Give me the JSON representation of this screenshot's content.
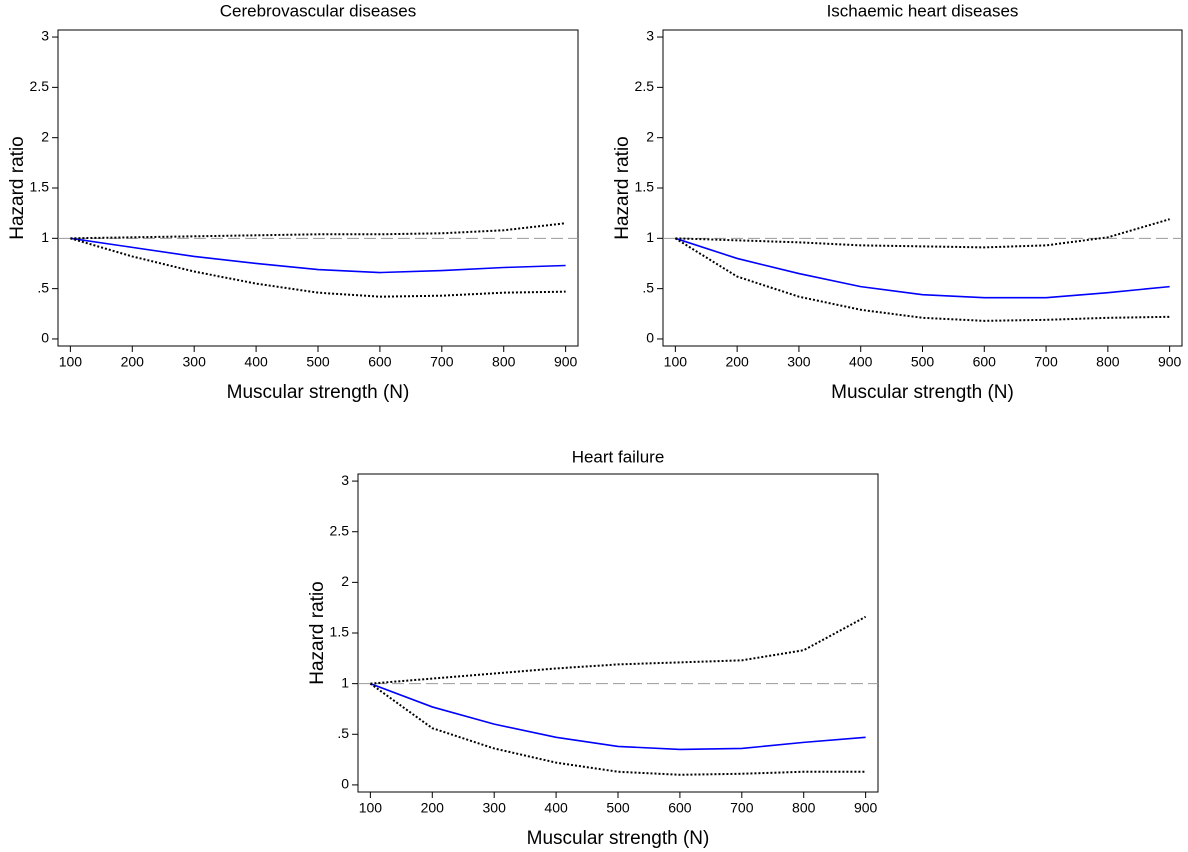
{
  "chart_data": [
    {
      "type": "line",
      "title": "Cerebrovascular diseases",
      "x_label": "Muscular strength (N)",
      "y_label": "Hazard ratio",
      "x": [
        100,
        200,
        300,
        400,
        500,
        600,
        700,
        800,
        900
      ],
      "series": [
        {
          "color": "#0000ff",
          "style": "solid",
          "values": [
            1,
            0.91,
            0.82,
            0.75,
            0.69,
            0.66,
            0.68,
            0.71,
            0.73
          ]
        },
        {
          "color": "#000000",
          "style": "dotted",
          "values": [
            1,
            1.01,
            1.02,
            1.03,
            1.04,
            1.04,
            1.05,
            1.08,
            1.15
          ]
        },
        {
          "color": "#000000",
          "style": "dotted",
          "values": [
            1,
            0.82,
            0.67,
            0.55,
            0.46,
            0.42,
            0.43,
            0.46,
            0.47
          ]
        }
      ],
      "reference_line": 1,
      "reference_color": "#999999",
      "xlim": [
        80,
        920
      ],
      "ylim": [
        -0.07,
        3.07
      ],
      "xticks": [
        100,
        200,
        300,
        400,
        500,
        600,
        700,
        800,
        900
      ],
      "yticks": [
        0,
        {
          "value": 0.5,
          "label": ".5"
        },
        1,
        1.5,
        2,
        2.5,
        3
      ]
    },
    {
      "type": "line",
      "title": "Ischaemic heart diseases",
      "x_label": "Muscular strength (N)",
      "y_label": "Hazard ratio",
      "x": [
        100,
        200,
        300,
        400,
        500,
        600,
        700,
        800,
        900
      ],
      "series": [
        {
          "color": "#0000ff",
          "style": "solid",
          "values": [
            1,
            0.8,
            0.65,
            0.52,
            0.44,
            0.41,
            0.41,
            0.46,
            0.52
          ]
        },
        {
          "color": "#000000",
          "style": "dotted",
          "values": [
            1,
            0.98,
            0.96,
            0.93,
            0.92,
            0.91,
            0.93,
            1.01,
            1.19
          ]
        },
        {
          "color": "#000000",
          "style": "dotted",
          "values": [
            1,
            0.62,
            0.42,
            0.29,
            0.21,
            0.18,
            0.19,
            0.21,
            0.22
          ]
        }
      ],
      "reference_line": 1,
      "reference_color": "#999999",
      "xlim": [
        80,
        920
      ],
      "ylim": [
        -0.07,
        3.07
      ],
      "xticks": [
        100,
        200,
        300,
        400,
        500,
        600,
        700,
        800,
        900
      ],
      "yticks": [
        0,
        {
          "value": 0.5,
          "label": ".5"
        },
        1,
        1.5,
        2,
        2.5,
        3
      ]
    },
    {
      "type": "line",
      "title": "Heart failure",
      "x_label": "Muscular strength (N)",
      "y_label": "Hazard ratio",
      "x": [
        100,
        200,
        300,
        400,
        500,
        600,
        700,
        800,
        900
      ],
      "series": [
        {
          "color": "#0000ff",
          "style": "solid",
          "values": [
            1,
            0.77,
            0.6,
            0.47,
            0.38,
            0.35,
            0.36,
            0.42,
            0.47
          ]
        },
        {
          "color": "#000000",
          "style": "dotted",
          "values": [
            1,
            1.05,
            1.1,
            1.15,
            1.19,
            1.21,
            1.23,
            1.33,
            1.66
          ]
        },
        {
          "color": "#000000",
          "style": "dotted",
          "values": [
            1,
            0.56,
            0.36,
            0.22,
            0.13,
            0.1,
            0.11,
            0.13,
            0.13
          ]
        }
      ],
      "reference_line": 1,
      "reference_color": "#999999",
      "xlim": [
        80,
        920
      ],
      "ylim": [
        -0.07,
        3.07
      ],
      "xticks": [
        100,
        200,
        300,
        400,
        500,
        600,
        700,
        800,
        900
      ],
      "yticks": [
        0,
        {
          "value": 0.5,
          "label": ".5"
        },
        1,
        1.5,
        2,
        2.5,
        3
      ]
    }
  ]
}
